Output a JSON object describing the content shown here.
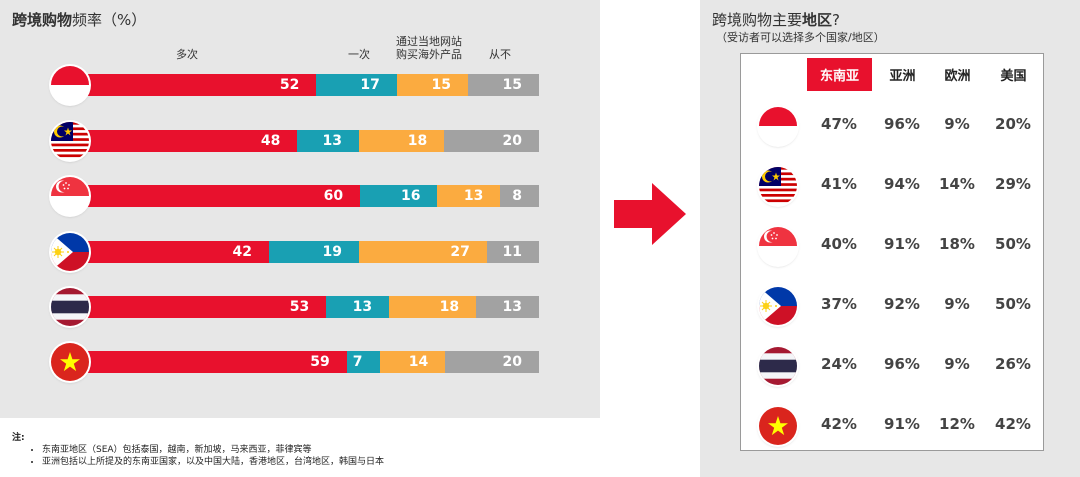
{
  "left": {
    "title_bold": "跨境购物",
    "title_rest": "频率（%）",
    "legend": [
      "多次",
      "一次",
      "通过当地网站\n购买海外产品",
      "从不"
    ]
  },
  "chart_data": {
    "type": "bar",
    "orientation": "horizontal",
    "stacked": true,
    "normalized_percent": true,
    "categories": [
      "Indonesia",
      "Malaysia",
      "Singapore",
      "Philippines",
      "Thailand",
      "Vietnam"
    ],
    "series": [
      {
        "name": "多次",
        "color": "#e8112d",
        "values": [
          52,
          48,
          60,
          42,
          53,
          59
        ]
      },
      {
        "name": "一次",
        "color": "#19a0b3",
        "values": [
          17,
          13,
          16,
          19,
          13,
          7
        ]
      },
      {
        "name": "通过当地网站购买海外产品",
        "color": "#fbab40",
        "values": [
          15,
          18,
          13,
          27,
          18,
          14
        ]
      },
      {
        "name": "从不",
        "color": "#a2a2a2",
        "values": [
          15,
          20,
          8,
          11,
          13,
          20
        ]
      }
    ],
    "title": "跨境购物频率（%）",
    "legend_position": "top",
    "grid": false
  },
  "arrow": {
    "icon": "right-arrow-icon",
    "color": "#e8112d"
  },
  "right": {
    "title_normal": "跨境购物主要",
    "title_bold": "地区",
    "title_end": "?",
    "subtitle": "（受访者可以选择多个国家/地区）",
    "headers": [
      "东南亚",
      "亚洲",
      "欧洲",
      "美国"
    ],
    "highlight_color": "#e8112d",
    "rows": [
      [
        "47%",
        "96%",
        "9%",
        "20%"
      ],
      [
        "41%",
        "94%",
        "14%",
        "29%"
      ],
      [
        "40%",
        "91%",
        "18%",
        "50%"
      ],
      [
        "37%",
        "92%",
        "9%",
        "50%"
      ],
      [
        "24%",
        "96%",
        "9%",
        "26%"
      ],
      [
        "42%",
        "91%",
        "12%",
        "42%"
      ]
    ]
  },
  "flags": [
    "indonesia-flag-icon",
    "malaysia-flag-icon",
    "singapore-flag-icon",
    "philippines-flag-icon",
    "thailand-flag-icon",
    "vietnam-flag-icon"
  ],
  "footnote": {
    "title": "注:",
    "items": [
      "东南亚地区（SEA）包括泰国，越南，新加坡，马来西亚，菲律宾等",
      "亚洲包括以上所提及的东南亚国家，以及中国大陆，香港地区，台湾地区，韩国与日本"
    ]
  }
}
